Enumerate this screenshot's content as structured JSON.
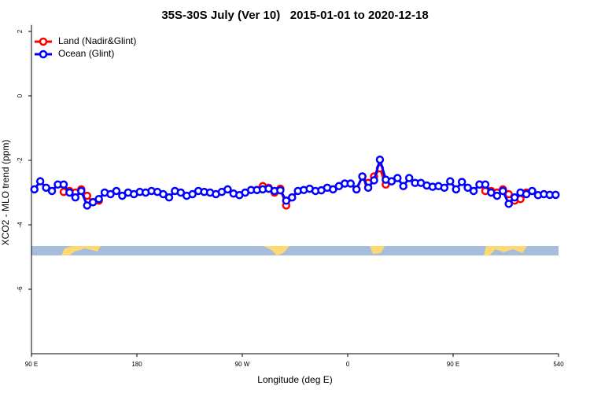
{
  "chart_data": {
    "type": "line",
    "title": "35S-30S July (Ver 10)   2015-01-01 to 2020-12-18",
    "x_label": "Longitude (deg E)",
    "y_label": "XCO2 - MLO trend (ppm)",
    "x": [
      92.5,
      97.5,
      102.5,
      107.5,
      112.5,
      117.5,
      122.5,
      127.5,
      132.5,
      137.5,
      142.5,
      147.5,
      152.5,
      157.5,
      162.5,
      167.5,
      172.5,
      177.5,
      182.5,
      187.5,
      192.5,
      197.5,
      202.5,
      207.5,
      212.5,
      217.5,
      222.5,
      227.5,
      232.5,
      237.5,
      242.5,
      247.5,
      252.5,
      257.5,
      262.5,
      267.5,
      272.5,
      277.5,
      282.5,
      287.5,
      292.5,
      297.5,
      302.5,
      307.5,
      312.5,
      317.5,
      322.5,
      327.5,
      332.5,
      337.5,
      342.5,
      347.5,
      352.5,
      357.5,
      362.5,
      367.5,
      372.5,
      377.5,
      382.5,
      387.5,
      392.5,
      397.5,
      402.5,
      407.5,
      412.5,
      417.5,
      422.5,
      427.5,
      432.5,
      437.5,
      442.5,
      447.5,
      452.5,
      457.5,
      462.5,
      467.5,
      472.5,
      477.5,
      482.5,
      487.5,
      492.5,
      497.5,
      502.5,
      507.5,
      512.5,
      517.5,
      522.5,
      527.5,
      532.5,
      537.5
    ],
    "series": [
      {
        "name": "Land (Nadir&Glint)",
        "color": "#ff0000",
        "values": [
          null,
          null,
          null,
          null,
          null,
          -2.98,
          -2.95,
          -3.0,
          -2.9,
          -3.1,
          -3.3,
          -3.25,
          null,
          null,
          null,
          null,
          null,
          null,
          null,
          null,
          null,
          null,
          null,
          null,
          null,
          null,
          null,
          null,
          null,
          null,
          null,
          null,
          null,
          null,
          null,
          null,
          null,
          null,
          -2.92,
          -2.8,
          -2.85,
          -3.0,
          -2.88,
          -3.4,
          -3.15,
          null,
          null,
          null,
          null,
          null,
          null,
          null,
          null,
          null,
          null,
          -2.9,
          -2.5,
          -2.7,
          -2.5,
          -2.25,
          -2.75,
          -2.65,
          null,
          null,
          null,
          null,
          null,
          null,
          null,
          null,
          null,
          null,
          null,
          null,
          null,
          null,
          -2.75,
          -2.95,
          -2.95,
          -3.0,
          -2.9,
          -3.05,
          -3.25,
          -3.2,
          -3.0,
          null,
          null,
          null,
          null,
          null
        ]
      },
      {
        "name": "Ocean (Glint)",
        "color": "#0000ff",
        "values": [
          -2.9,
          -2.65,
          -2.85,
          -2.95,
          -2.75,
          -2.75,
          -3.0,
          -3.15,
          -2.95,
          -3.4,
          -3.3,
          -3.2,
          -3.0,
          -3.05,
          -2.95,
          -3.1,
          -3.0,
          -3.05,
          -2.98,
          -3.0,
          -2.95,
          -2.98,
          -3.05,
          -3.15,
          -2.95,
          -3.0,
          -3.1,
          -3.05,
          -2.95,
          -2.98,
          -3.0,
          -3.05,
          -2.98,
          -2.9,
          -3.03,
          -3.08,
          -3.0,
          -2.92,
          -2.92,
          -2.9,
          -2.88,
          -2.95,
          -2.93,
          -3.25,
          -3.15,
          -2.95,
          -2.92,
          -2.88,
          -2.95,
          -2.93,
          -2.85,
          -2.9,
          -2.8,
          -2.72,
          -2.72,
          -2.9,
          -2.5,
          -2.85,
          -2.62,
          -1.98,
          -2.6,
          -2.65,
          -2.55,
          -2.8,
          -2.55,
          -2.7,
          -2.7,
          -2.78,
          -2.82,
          -2.8,
          -2.85,
          -2.65,
          -2.9,
          -2.67,
          -2.85,
          -2.95,
          -2.75,
          -2.75,
          -3.0,
          -3.1,
          -2.95,
          -3.35,
          -3.15,
          -3.0,
          -3.05,
          -2.95,
          -3.08,
          -3.05,
          -3.07,
          -3.07
        ]
      }
    ],
    "xlim": [
      90,
      540
    ],
    "xticks": [
      {
        "value": 90,
        "label": "90 E"
      },
      180,
      {
        "value": 270,
        "label": "90 W"
      },
      {
        "value": 360,
        "label": "0"
      },
      {
        "value": 450,
        "label": "90 E"
      },
      540
    ],
    "ylim": [
      -8,
      2.2
    ],
    "yticks": [
      -6,
      -4,
      -2,
      0,
      2
    ],
    "legend": "top-left"
  }
}
